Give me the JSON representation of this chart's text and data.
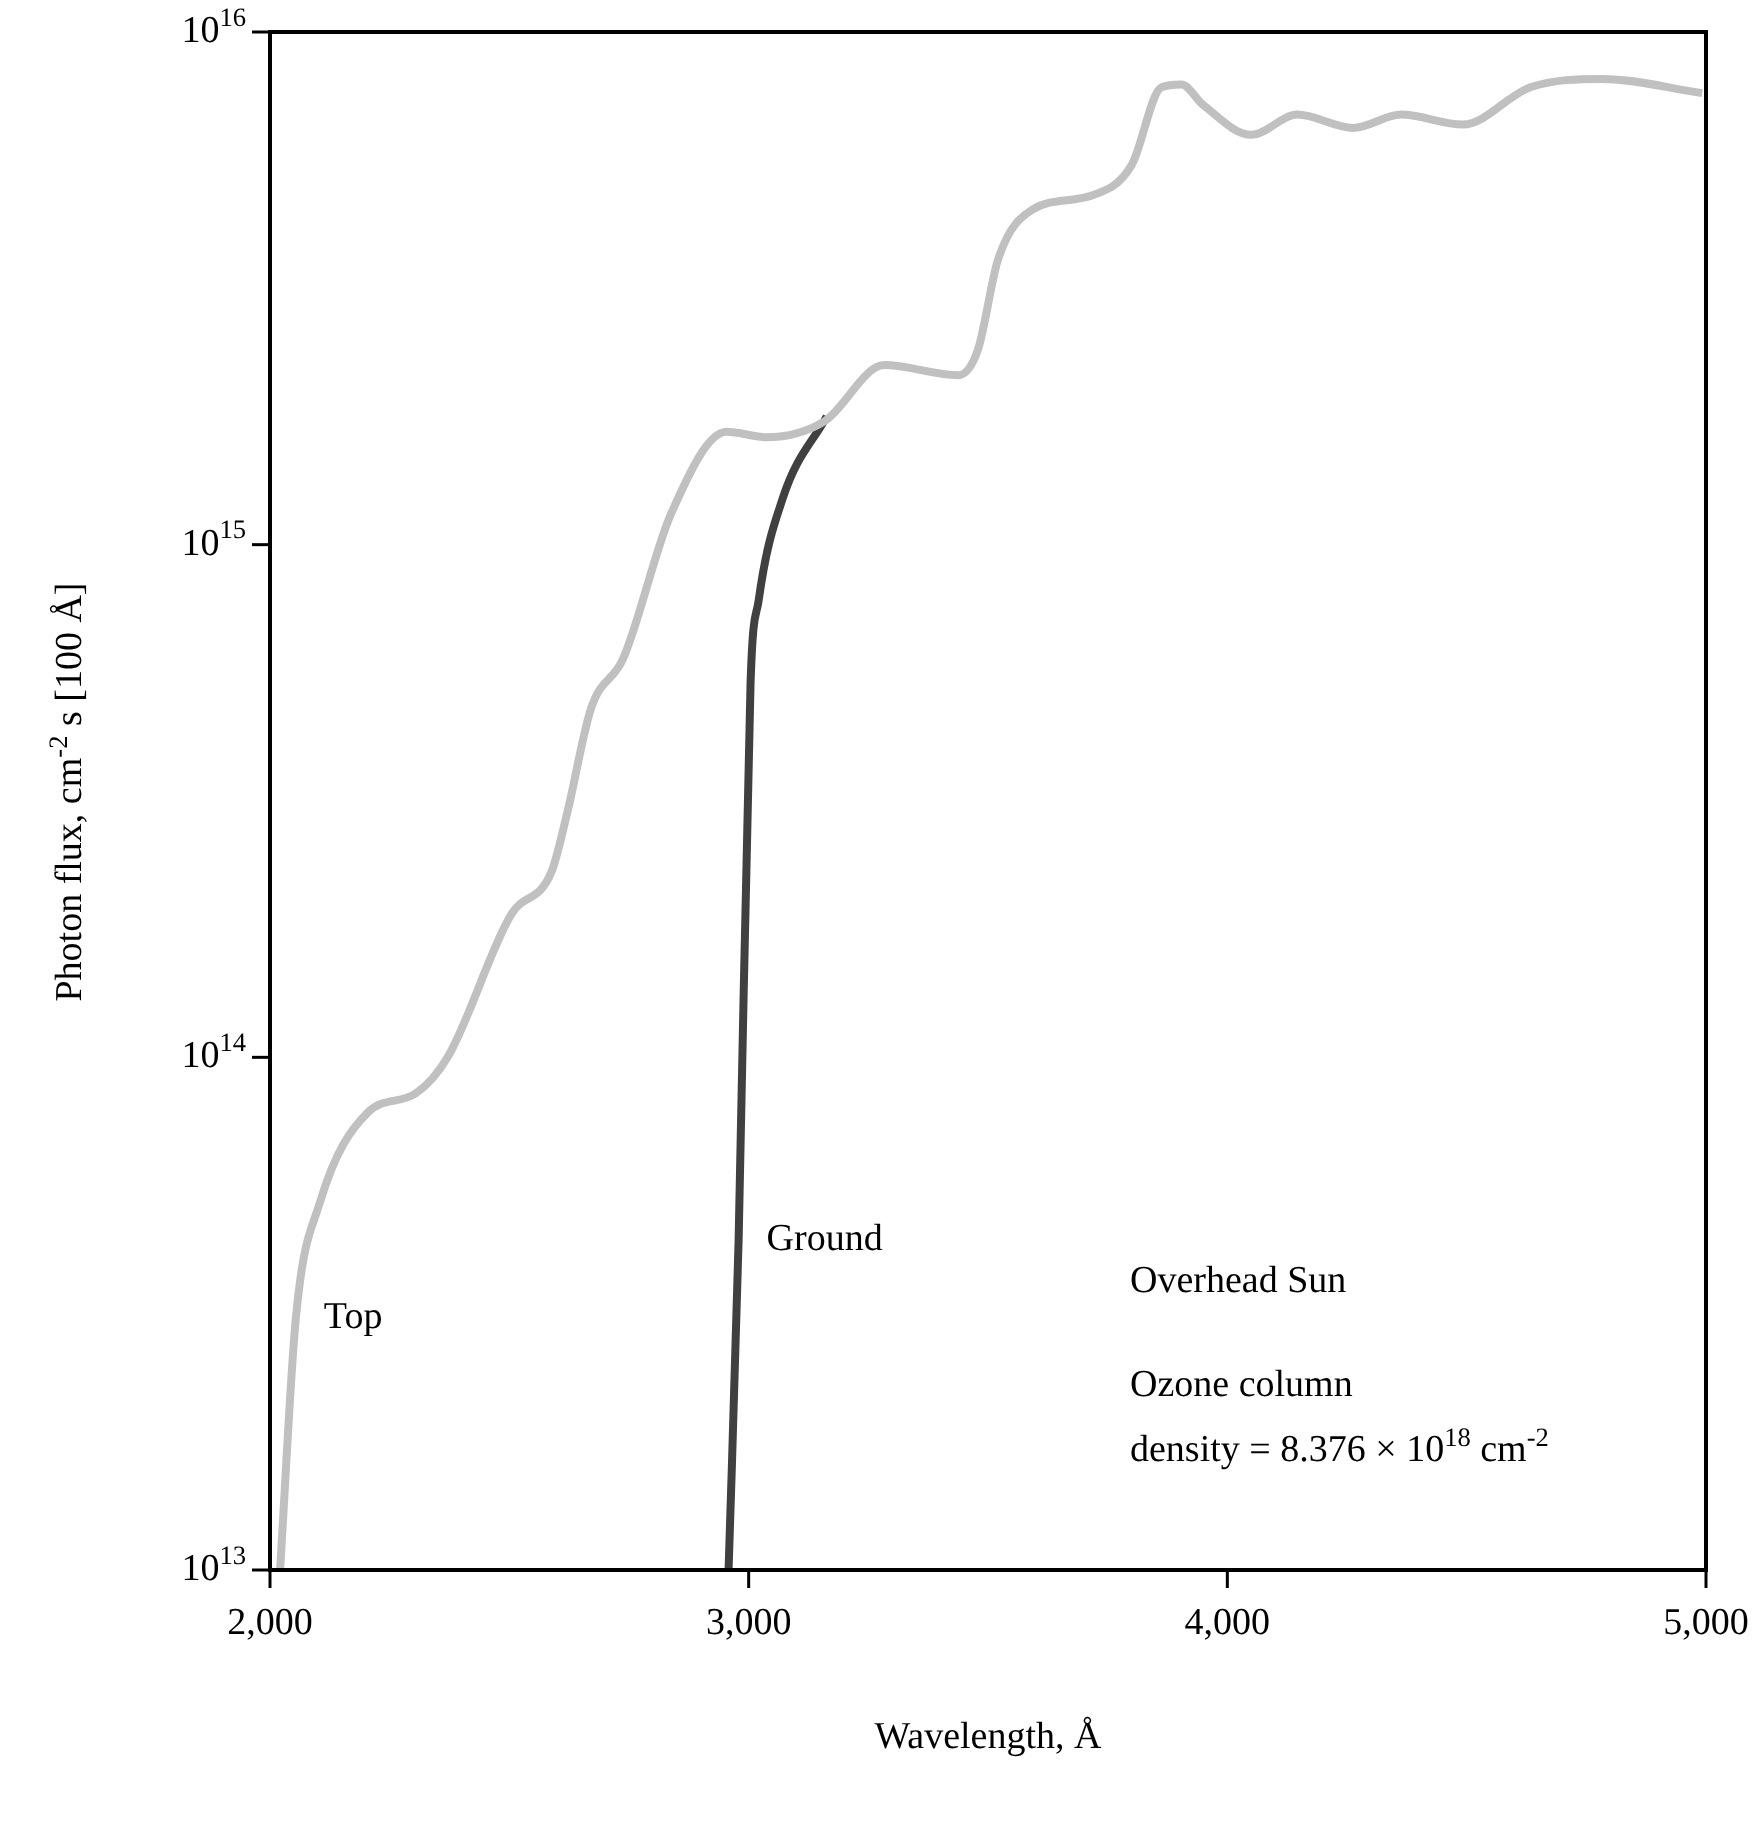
{
  "chart_data": {
    "type": "line",
    "xlabel": "Wavelength, Å",
    "ylabel": "Photon flux, cm$^{-2}$ s [100 Å]",
    "log": "y",
    "grid": false,
    "legend": false,
    "marker": "none",
    "line_style": "solid",
    "xlim": [
      2000,
      5000
    ],
    "xticks": [
      {
        "value": 2000,
        "label": "2,000"
      },
      {
        "value": 3000,
        "label": "3,000"
      },
      {
        "value": 4000,
        "label": "4,000"
      },
      {
        "value": 5000,
        "label": "5,000"
      }
    ],
    "ylim": [
      10000000000000.0,
      1e+16
    ],
    "yticks": [
      {
        "value": 10000000000000.0,
        "label": "10$^{13}$"
      },
      {
        "value": 100000000000000.0,
        "label": "10$^{14}$"
      },
      {
        "value": 1000000000000000.0,
        "label": "10$^{15}$"
      },
      {
        "value": 1e+16,
        "label": "10$^{16}$"
      }
    ],
    "series": [
      {
        "name": "Top",
        "color": "#c0c0c0",
        "x": [
          2021,
          2054,
          2104,
          2204,
          2304,
          2371,
          2504,
          2588,
          2621,
          2671,
          2738,
          2838,
          2954,
          3038,
          3158,
          3283,
          3438,
          3479,
          3521,
          3592,
          3717,
          3800,
          3862,
          3904,
          3950,
          4050,
          4146,
          4263,
          4363,
          4492,
          4633,
          4783,
          4992
        ],
        "values": [
          10000000000000.0,
          31000000000000.0,
          52000000000000.0,
          78000000000000.0,
          85000000000000.0,
          100000000000000.0,
          190000000000000.0,
          230000000000000.0,
          300000000000000.0,
          480000000000000.0,
          600000000000000.0,
          1150000000000000.0,
          1660000000000000.0,
          1620000000000000.0,
          1740000000000000.0,
          2240000000000000.0,
          2140000000000000.0,
          2400000000000000.0,
          3600000000000000.0,
          4500000000000000.0,
          4800000000000000.0,
          5500000000000000.0,
          7800000000000000.0,
          7900000000000000.0,
          7200000000000000.0,
          6300000000000000.0,
          6900000000000000.0,
          6500000000000000.0,
          6900000000000000.0,
          6600000000000000.0,
          7800000000000000.0,
          8100000000000000.0,
          7600000000000000.0
        ]
      },
      {
        "name": "Ground",
        "color": "#404040",
        "x": [
          2958,
          2979,
          3004,
          3021,
          3071,
          3163
        ],
        "values": [
          10000000000000.0,
          44000000000000.0,
          540000000000000.0,
          780000000000000.0,
          1230000000000000.0,
          1780000000000000.0
        ]
      }
    ],
    "annotations": [
      "Overhead Sun",
      "Ozone column",
      "density = 8.376 × 10$^{18}$ cm$^{-2}$"
    ]
  }
}
